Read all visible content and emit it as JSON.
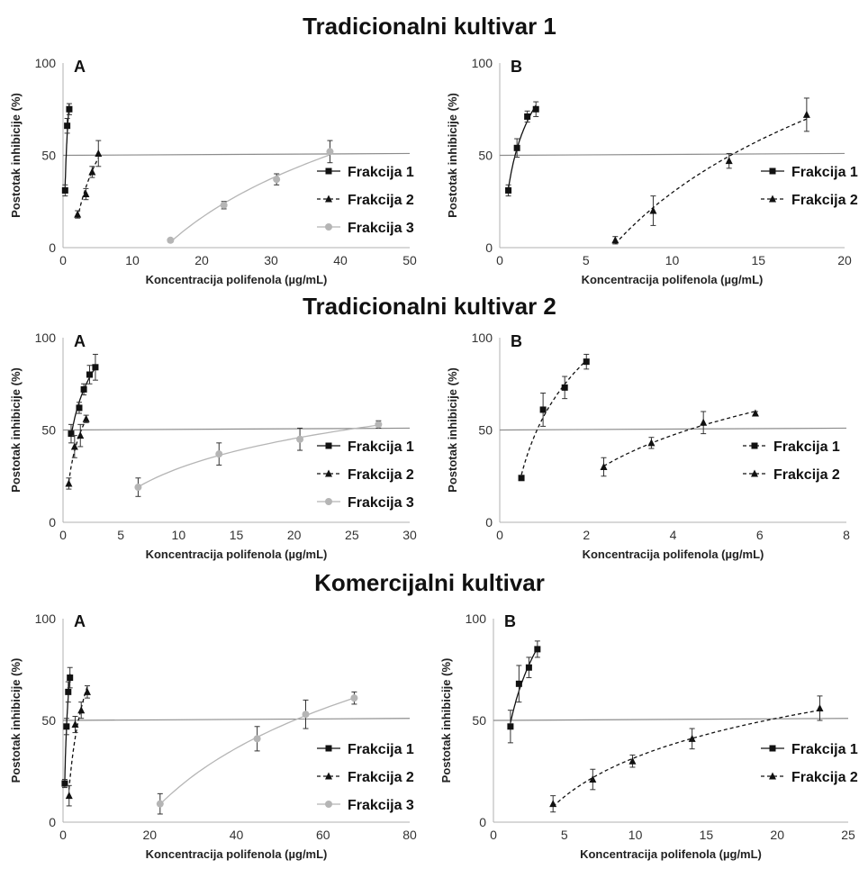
{
  "sections": [
    {
      "title": "Tradicionalni kultivar 1"
    },
    {
      "title": "Tradicionalni kultivar 2"
    },
    {
      "title": "Komercijalni kultivar"
    }
  ],
  "colors": {
    "frakcija1": "#111111",
    "frakcija2": "#111111",
    "frakcija3": "#b5b5b5",
    "reference": "#8c8c8c"
  },
  "chart_data": [
    {
      "type": "scatter",
      "section": "Tradicionalni kultivar 1",
      "panel_label": "A",
      "xlabel": "Koncentracija polifenola (µg/mL)",
      "ylabel": "Postotak inhibicije (%)",
      "xlim": [
        0,
        50
      ],
      "ylim": [
        0,
        100
      ],
      "xticks": [
        0,
        10,
        20,
        30,
        40,
        50
      ],
      "yticks": [
        0,
        50,
        100
      ],
      "reference_line": {
        "from": [
          0,
          50
        ],
        "to": [
          50,
          51
        ]
      },
      "legend_position": "right",
      "series": [
        {
          "name": "Frakcija 1",
          "marker": "square",
          "line": "solid",
          "color": "#111111",
          "x": [
            0.3,
            0.6,
            0.9
          ],
          "y": [
            31,
            66,
            75
          ],
          "err": [
            3,
            4,
            3
          ]
        },
        {
          "name": "Frakcija 2",
          "marker": "triangle",
          "line": "dashed",
          "color": "#111111",
          "x": [
            2.1,
            3.3,
            4.2,
            5.1
          ],
          "y": [
            18,
            29,
            41,
            51
          ],
          "err": [
            2,
            3,
            3,
            7
          ]
        },
        {
          "name": "Frakcija 3",
          "marker": "circle",
          "line": "solid",
          "color": "#b5b5b5",
          "x": [
            15.5,
            23.2,
            30.8,
            38.5
          ],
          "y": [
            4,
            23,
            37,
            52
          ],
          "err": [
            1,
            2,
            3,
            6
          ]
        }
      ]
    },
    {
      "type": "scatter",
      "section": "Tradicionalni kultivar 1",
      "panel_label": "B",
      "xlabel": "Koncentracija polifenola (µg/mL)",
      "ylabel": "Postotak inhibicije (%)",
      "xlim": [
        0,
        20
      ],
      "ylim": [
        0,
        100
      ],
      "xticks": [
        0,
        5,
        10,
        15,
        20
      ],
      "yticks": [
        0,
        50,
        100
      ],
      "reference_line": {
        "from": [
          0,
          50
        ],
        "to": [
          20,
          51
        ]
      },
      "legend_position": "right",
      "series": [
        {
          "name": "Frakcija 1",
          "marker": "square",
          "line": "solid",
          "color": "#111111",
          "x": [
            0.5,
            1.0,
            1.6,
            2.1
          ],
          "y": [
            31,
            54,
            71,
            75
          ],
          "err": [
            3,
            5,
            3,
            4
          ]
        },
        {
          "name": "Frakcija 2",
          "marker": "triangle",
          "line": "dashed",
          "color": "#111111",
          "x": [
            6.7,
            8.9,
            13.3,
            17.8
          ],
          "y": [
            4,
            20,
            47,
            72
          ],
          "err": [
            2,
            8,
            4,
            9
          ]
        }
      ]
    },
    {
      "type": "scatter",
      "section": "Tradicionalni kultivar 2",
      "panel_label": "A",
      "xlabel": "Koncentracija polifenola (µg/mL)",
      "ylabel": "Postotak inhibicije (%)",
      "xlim": [
        0,
        30
      ],
      "ylim": [
        0,
        100
      ],
      "xticks": [
        0,
        5,
        10,
        15,
        20,
        25,
        30
      ],
      "yticks": [
        0,
        50,
        100
      ],
      "reference_line": {
        "from": [
          0,
          50
        ],
        "to": [
          30,
          51
        ]
      },
      "legend_position": "right",
      "series": [
        {
          "name": "Frakcija 1",
          "marker": "square",
          "line": "solid",
          "color": "#111111",
          "x": [
            0.7,
            1.4,
            1.8,
            2.3,
            2.8
          ],
          "y": [
            48,
            62,
            72,
            80,
            84
          ],
          "err": [
            5,
            3,
            3,
            5,
            7
          ]
        },
        {
          "name": "Frakcija 2",
          "marker": "triangle",
          "line": "dashed",
          "color": "#111111",
          "x": [
            0.5,
            1.0,
            1.5,
            2.0
          ],
          "y": [
            21,
            41,
            47,
            56
          ],
          "err": [
            3,
            6,
            6,
            2
          ]
        },
        {
          "name": "Frakcija 3",
          "marker": "circle",
          "line": "solid",
          "color": "#b5b5b5",
          "x": [
            6.5,
            13.5,
            20.5,
            27.3
          ],
          "y": [
            19,
            37,
            45,
            53
          ],
          "err": [
            5,
            6,
            6,
            2
          ]
        }
      ]
    },
    {
      "type": "scatter",
      "section": "Tradicionalni kultivar 2",
      "panel_label": "B",
      "xlabel": "Koncentracija polifenola (µg/mL)",
      "ylabel": "Postotak inhibicije (%)",
      "xlim": [
        0,
        8
      ],
      "ylim": [
        0,
        100
      ],
      "xticks": [
        0,
        2,
        4,
        6,
        8
      ],
      "yticks": [
        0,
        50,
        100
      ],
      "reference_line": {
        "from": [
          0,
          50
        ],
        "to": [
          8,
          51
        ]
      },
      "legend_position": "right",
      "series": [
        {
          "name": "Frakcija 1",
          "marker": "square",
          "line": "dashed",
          "color": "#111111",
          "x": [
            0.5,
            1.0,
            1.5,
            2.0
          ],
          "y": [
            24,
            61,
            73,
            87
          ],
          "err": [
            1,
            9,
            6,
            4
          ]
        },
        {
          "name": "Frakcija 2",
          "marker": "triangle",
          "line": "dashed",
          "color": "#111111",
          "x": [
            2.4,
            3.5,
            4.7,
            5.9
          ],
          "y": [
            30,
            43,
            54,
            59
          ],
          "err": [
            5,
            3,
            6,
            1
          ]
        }
      ]
    },
    {
      "type": "scatter",
      "section": "Komercijalni kultivar",
      "panel_label": "A",
      "xlabel": "Koncentracija polifenola (µg/mL)",
      "ylabel": "Postotak inhibicije (%)",
      "xlim": [
        0,
        80
      ],
      "ylim": [
        0,
        100
      ],
      "xticks": [
        0,
        20,
        40,
        60,
        80
      ],
      "yticks": [
        0,
        50,
        100
      ],
      "reference_line": {
        "from": [
          0,
          50
        ],
        "to": [
          80,
          51
        ]
      },
      "legend_position": "right",
      "series": [
        {
          "name": "Frakcija 1",
          "marker": "square",
          "line": "solid",
          "color": "#111111",
          "x": [
            0.4,
            0.8,
            1.2,
            1.6
          ],
          "y": [
            19,
            47,
            64,
            71
          ],
          "err": [
            2,
            4,
            5,
            5
          ]
        },
        {
          "name": "Frakcija 2",
          "marker": "triangle",
          "line": "dashed",
          "color": "#111111",
          "x": [
            1.4,
            2.8,
            4.2,
            5.6
          ],
          "y": [
            13,
            48,
            55,
            64
          ],
          "err": [
            5,
            4,
            4,
            3
          ]
        },
        {
          "name": "Frakcija 3",
          "marker": "circle",
          "line": "solid",
          "color": "#b5b5b5",
          "x": [
            22.4,
            44.8,
            56.0,
            67.2
          ],
          "y": [
            9,
            41,
            53,
            61
          ],
          "err": [
            5,
            6,
            7,
            3
          ]
        }
      ]
    },
    {
      "type": "scatter",
      "section": "Komercijalni kultivar",
      "panel_label": "B",
      "xlabel": "Koncentracija polifenola (µg/mL)",
      "ylabel": "Postotak inhibicije (%)",
      "xlim": [
        0,
        25
      ],
      "ylim": [
        0,
        100
      ],
      "xticks": [
        0,
        5,
        10,
        15,
        20,
        25
      ],
      "yticks": [
        0,
        50,
        100
      ],
      "reference_line": {
        "from": [
          0,
          50
        ],
        "to": [
          25,
          51
        ]
      },
      "legend_position": "right",
      "series": [
        {
          "name": "Frakcija 1",
          "marker": "square",
          "line": "solid",
          "color": "#111111",
          "x": [
            1.2,
            1.8,
            2.5,
            3.1
          ],
          "y": [
            47,
            68,
            76,
            85
          ],
          "err": [
            8,
            9,
            5,
            4
          ]
        },
        {
          "name": "Frakcija 2",
          "marker": "triangle",
          "line": "dashed",
          "color": "#111111",
          "x": [
            4.2,
            7.0,
            9.8,
            14.0,
            23.0
          ],
          "y": [
            9,
            21,
            30,
            41,
            56
          ],
          "err": [
            4,
            5,
            3,
            5,
            6
          ]
        }
      ]
    }
  ]
}
